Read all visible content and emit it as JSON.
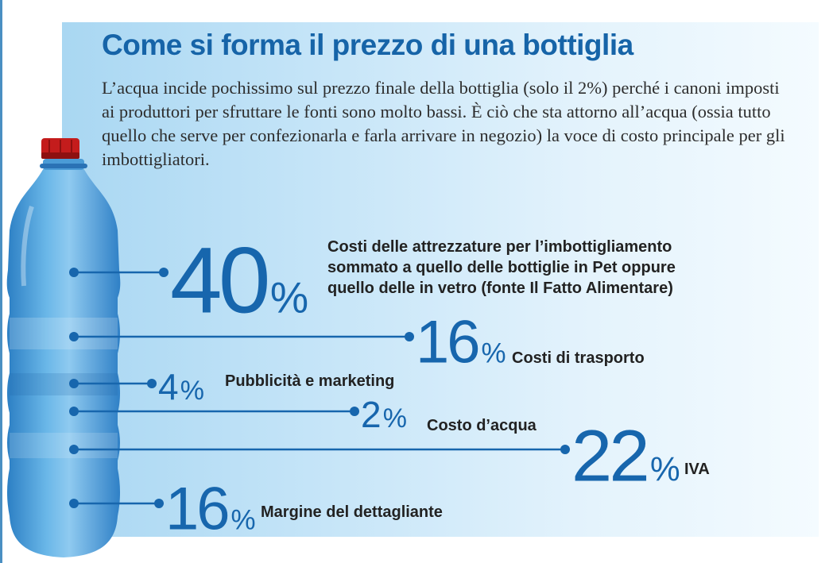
{
  "title": "Come si forma il prezzo di una bottiglia",
  "intro": "L’acqua incide pochissimo sul prezzo finale della bottiglia (solo il 2%) perché i canoni imposti ai produttori per sfruttare le fonti sono molto bassi. È ciò che sta attorno all’acqua (ossia tutto quello che serve per confezionarla e farla arrivare in negozio) la voce di costo principale per gli imbottigliatori.",
  "colors": {
    "accent": "#1766ad",
    "title": "#1664a8",
    "text": "#222222",
    "bottle": "#3a8fd0",
    "cap": "#c41c1c"
  },
  "chart_data": {
    "type": "table",
    "title": "Come si forma il prezzo di una bottiglia",
    "unit": "%",
    "items": [
      {
        "value": 40,
        "label_lines": [
          "Costi delle attrezzature per l’imbottigliamento",
          "sommato a quello delle bottiglie in Pet oppure",
          "quello delle in vetro (fonte Il Fatto Alimentare)"
        ]
      },
      {
        "value": 16,
        "label_lines": [
          "Costi di trasporto"
        ]
      },
      {
        "value": 4,
        "label_lines": [
          "Pubblicità e marketing"
        ]
      },
      {
        "value": 2,
        "label_lines": [
          "Costo d’acqua"
        ]
      },
      {
        "value": 22,
        "label_lines": [
          "IVA"
        ]
      },
      {
        "value": 16,
        "label_lines": [
          "Margine del dettagliante"
        ]
      }
    ]
  }
}
